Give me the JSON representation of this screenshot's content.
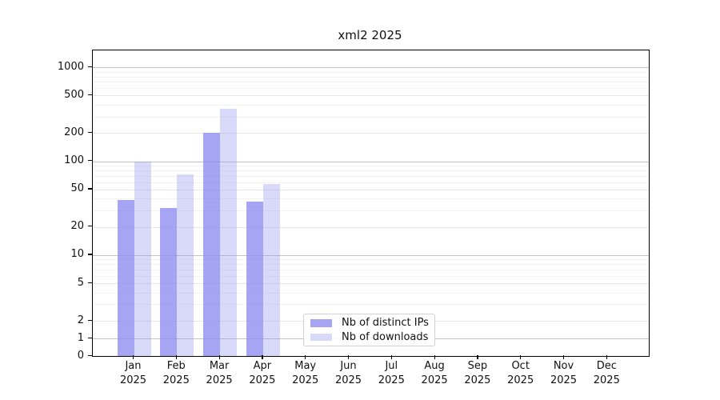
{
  "chart_data": {
    "type": "bar",
    "title": "xml2 2025",
    "scale": "symlog",
    "grid": "on (major and minor horizontal gridlines)",
    "legend_position": "lower center",
    "x_year": "2025",
    "categories": [
      "Jan",
      "Feb",
      "Mar",
      "Apr",
      "May",
      "Jun",
      "Jul",
      "Aug",
      "Sep",
      "Oct",
      "Nov",
      "Dec"
    ],
    "y_ticks": [
      0,
      1,
      2,
      5,
      10,
      20,
      50,
      100,
      200,
      500,
      1000
    ],
    "y_minor_gridlines": [
      3,
      4,
      6,
      7,
      8,
      9,
      30,
      40,
      60,
      70,
      80,
      90,
      300,
      400,
      600,
      700,
      800,
      900
    ],
    "ylim": [
      0,
      1500
    ],
    "series": [
      {
        "name": "Nb of distinct IPs",
        "color": "rgba(140,140,240,0.78)",
        "values": [
          39,
          32,
          200,
          37,
          0,
          0,
          0,
          0,
          0,
          0,
          0,
          0
        ]
      },
      {
        "name": "Nb of downloads",
        "color": "rgba(140,140,240,0.33)",
        "values": [
          100,
          72,
          360,
          57,
          0,
          0,
          0,
          0,
          0,
          0,
          0,
          0
        ]
      }
    ]
  }
}
